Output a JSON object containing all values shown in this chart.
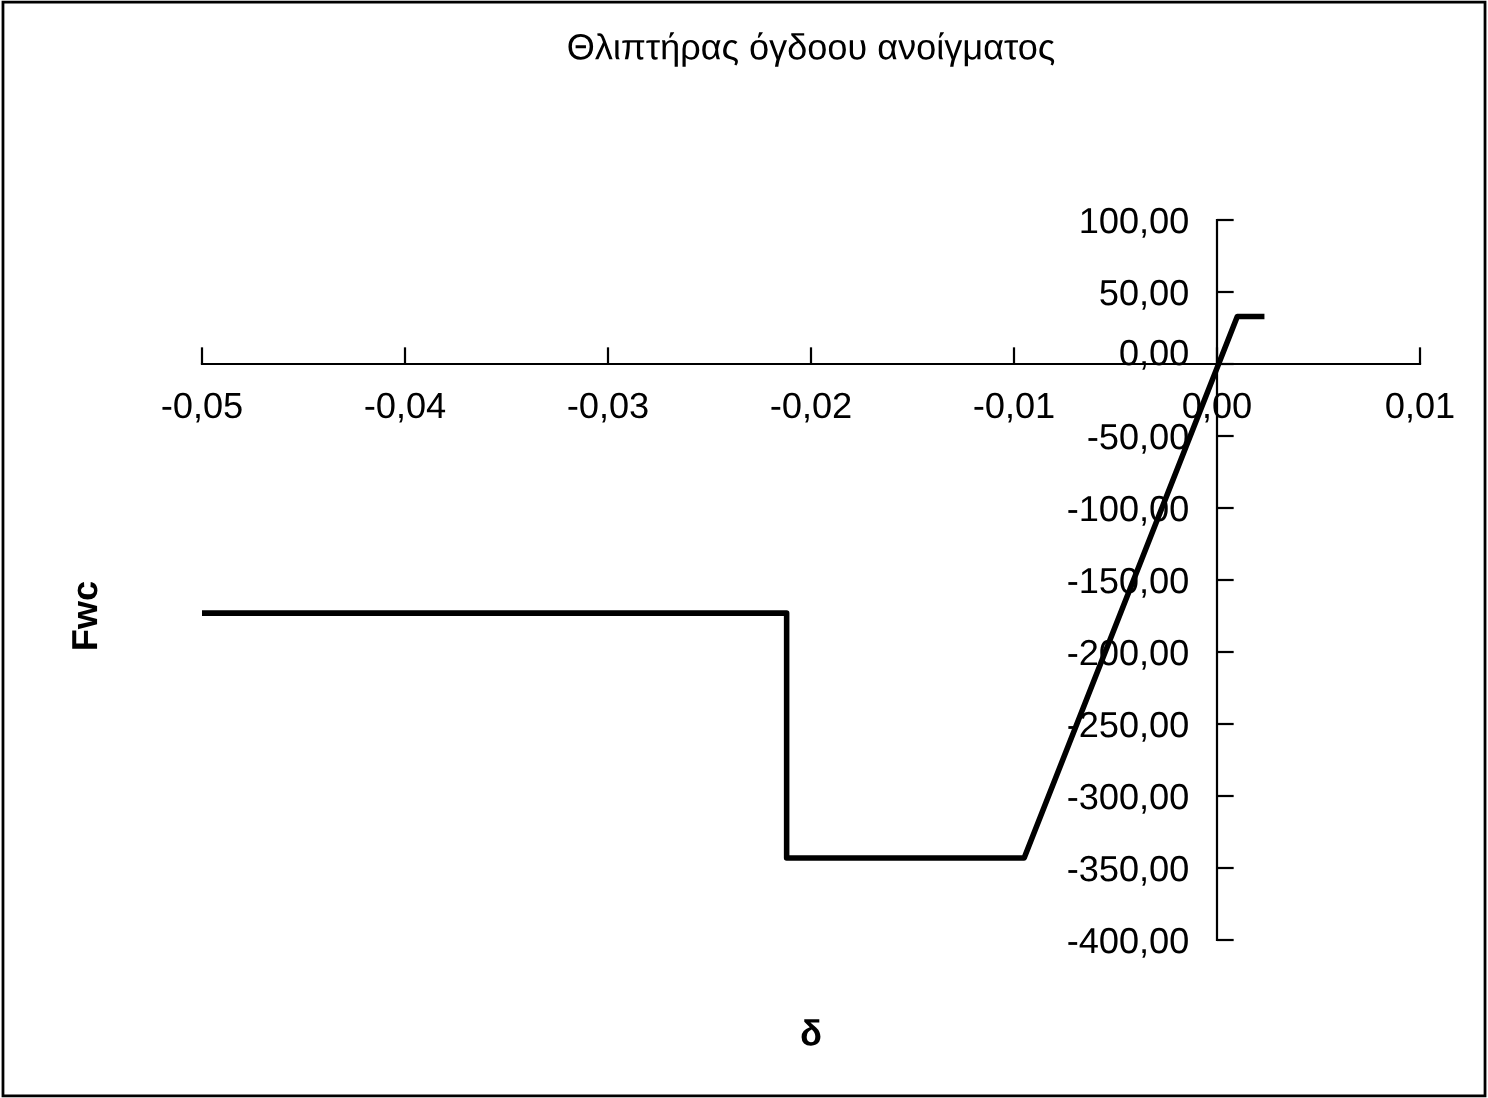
{
  "chart_data": {
    "type": "line",
    "title": "Θλιπτήρας όγδοου ανοίγματος",
    "xlabel": "δ",
    "ylabel": "Fwc",
    "series": [
      {
        "color": "#000000",
        "x": [
          -0.05,
          -0.0212,
          -0.0212,
          -0.0095,
          0.001,
          0.0022
        ],
        "values": [
          -173,
          -173,
          -343,
          -343,
          33,
          33
        ]
      }
    ],
    "xlim": [
      -0.05,
      0.01
    ],
    "xticks": [
      {
        "value": -0.05,
        "label": "-0,05"
      },
      {
        "value": -0.04,
        "label": "-0,04"
      },
      {
        "value": -0.03,
        "label": "-0,03"
      },
      {
        "value": -0.02,
        "label": "-0,02"
      },
      {
        "value": -0.01,
        "label": "-0,01"
      },
      {
        "value": 0,
        "label": "0,00"
      },
      {
        "value": 0.01,
        "label": "0,01"
      }
    ],
    "ylim": [
      -400,
      100
    ],
    "yticks": [
      {
        "value": -400,
        "label": "-400,00"
      },
      {
        "value": -350,
        "label": "-350,00"
      },
      {
        "value": -300,
        "label": "-300,00"
      },
      {
        "value": -250,
        "label": "-250,00"
      },
      {
        "value": -200,
        "label": "-200,00"
      },
      {
        "value": -150,
        "label": "-150,00"
      },
      {
        "value": -100,
        "label": "-100,00"
      },
      {
        "value": -50,
        "label": "-50,00"
      },
      {
        "value": 0,
        "label": "0,00"
      },
      {
        "value": 50,
        "label": "50,00"
      },
      {
        "value": 100,
        "label": "100,00"
      }
    ],
    "grid": false,
    "marker": "none",
    "line_style": "solid"
  }
}
